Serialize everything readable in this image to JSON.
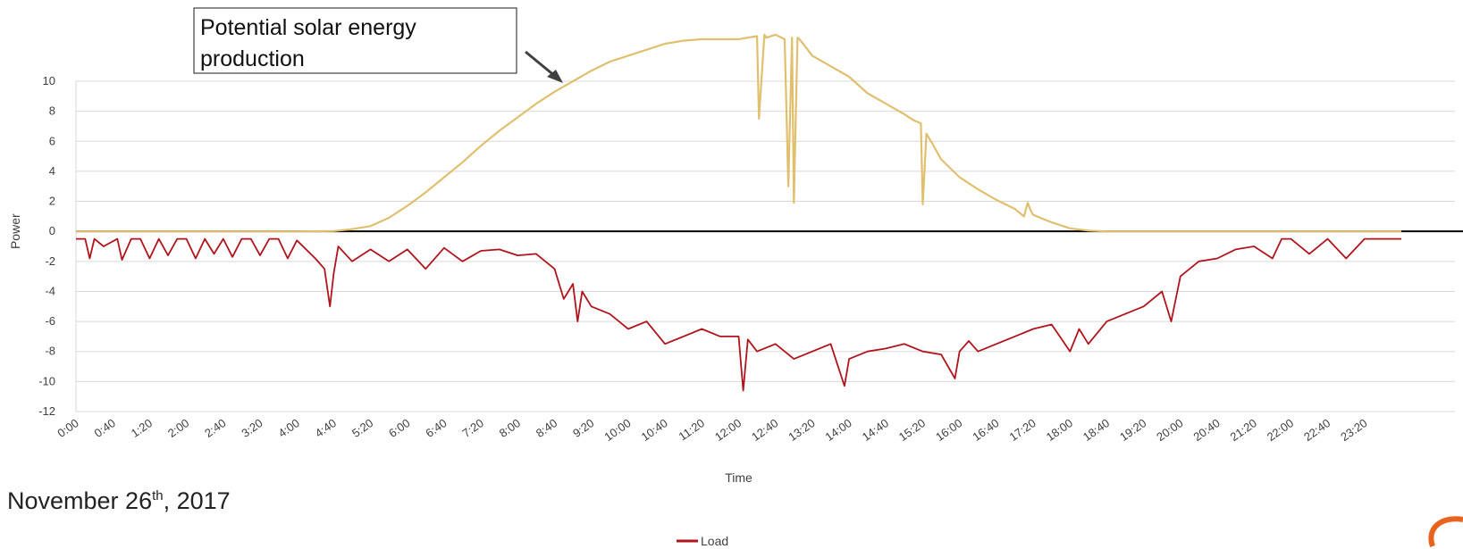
{
  "colors": {
    "solar": "#E0C06F",
    "load": "#B0141C",
    "zero_line": "#000000",
    "grid": "#D9D9D9",
    "brand": "#E8641E"
  },
  "annotation": {
    "line1": "Potential solar energy",
    "line2": "production"
  },
  "caption": {
    "month_day": "November 26",
    "suffix": "th",
    "year": ", 2017"
  },
  "brand_icon": "orange-arc-logo",
  "chart_data": {
    "type": "line",
    "xlabel": "Time",
    "ylabel": "Power",
    "ylim": [
      -12,
      12
    ],
    "yticks": [
      10,
      8,
      6,
      4,
      2,
      0,
      -2,
      -4,
      -6,
      -8,
      -10,
      -12
    ],
    "xlim_hours": [
      0,
      24
    ],
    "xticks": [
      "0:00",
      "0:40",
      "1:20",
      "2:00",
      "2:40",
      "3:20",
      "4:00",
      "4:40",
      "5:20",
      "6:00",
      "6:40",
      "7:20",
      "8:00",
      "8:40",
      "9:20",
      "10:00",
      "10:40",
      "11:20",
      "12:00",
      "12:40",
      "13:20",
      "14:00",
      "14:40",
      "15:20",
      "16:00",
      "16:40",
      "17:20",
      "18:00",
      "18:40",
      "19:20",
      "20:00",
      "20:40",
      "21:20",
      "22:00",
      "22:40",
      "23:20"
    ],
    "grid": true,
    "legend": [
      "Load"
    ],
    "legend_position": "bottom",
    "series": [
      {
        "name": "",
        "x": [
          "0:00",
          "4:00",
          "4:40",
          "5:00",
          "5:20",
          "5:40",
          "6:00",
          "6:20",
          "6:40",
          "7:00",
          "7:20",
          "7:40",
          "8:00",
          "8:20",
          "8:40",
          "9:00",
          "9:20",
          "9:40",
          "10:00",
          "10:20",
          "10:40",
          "11:00",
          "11:20",
          "11:40",
          "12:00",
          "12:10",
          "12:20",
          "12:22",
          "12:28",
          "12:30",
          "12:40",
          "12:50",
          "12:54",
          "12:58",
          "13:00",
          "13:04",
          "13:06",
          "13:10",
          "13:20",
          "13:40",
          "14:00",
          "14:20",
          "14:40",
          "15:00",
          "15:10",
          "15:18",
          "15:20",
          "15:24",
          "15:30",
          "15:40",
          "16:00",
          "16:20",
          "16:40",
          "17:00",
          "17:10",
          "17:14",
          "17:18",
          "17:20",
          "17:40",
          "18:00",
          "18:20",
          "18:40",
          "19:20",
          "24:00"
        ],
        "values": [
          0,
          0,
          0.02,
          0.15,
          0.35,
          0.9,
          1.7,
          2.6,
          3.6,
          4.6,
          5.7,
          6.7,
          7.6,
          8.5,
          9.3,
          10.0,
          10.7,
          11.3,
          11.7,
          12.1,
          12.5,
          12.7,
          12.8,
          12.8,
          12.8,
          12.9,
          13.0,
          7.5,
          13.1,
          12.9,
          13.1,
          12.8,
          3.0,
          12.9,
          1.9,
          12.9,
          12.8,
          12.5,
          11.7,
          11.0,
          10.3,
          9.2,
          8.5,
          7.8,
          7.4,
          7.2,
          1.8,
          6.5,
          5.9,
          4.8,
          3.6,
          2.8,
          2.1,
          1.5,
          1.0,
          1.9,
          1.3,
          1.1,
          0.6,
          0.2,
          0.05,
          0,
          0,
          0
        ]
      },
      {
        "name": "Load",
        "x": [
          "0:00",
          "0:10",
          "0:15",
          "0:20",
          "0:30",
          "0:45",
          "0:50",
          "1:00",
          "1:10",
          "1:20",
          "1:30",
          "1:40",
          "1:50",
          "2:00",
          "2:10",
          "2:20",
          "2:30",
          "2:40",
          "2:50",
          "3:00",
          "3:10",
          "3:20",
          "3:30",
          "3:40",
          "3:50",
          "4:00",
          "4:10",
          "4:20",
          "4:30",
          "4:36",
          "4:40",
          "4:45",
          "5:00",
          "5:20",
          "5:40",
          "6:00",
          "6:20",
          "6:40",
          "7:00",
          "7:20",
          "7:40",
          "8:00",
          "8:20",
          "8:40",
          "8:50",
          "9:00",
          "9:05",
          "9:10",
          "9:20",
          "9:40",
          "9:50",
          "10:00",
          "10:20",
          "10:40",
          "11:00",
          "11:20",
          "11:40",
          "12:00",
          "12:05",
          "12:10",
          "12:20",
          "12:40",
          "13:00",
          "13:20",
          "13:40",
          "13:55",
          "14:00",
          "14:20",
          "14:40",
          "15:00",
          "15:20",
          "15:40",
          "15:55",
          "16:00",
          "16:10",
          "16:20",
          "16:40",
          "17:00",
          "17:20",
          "17:40",
          "18:00",
          "18:10",
          "18:20",
          "18:40",
          "19:00",
          "19:20",
          "19:40",
          "19:50",
          "20:00",
          "20:20",
          "20:40",
          "21:00",
          "21:20",
          "21:40",
          "21:50",
          "22:00",
          "22:20",
          "22:40",
          "23:00",
          "23:20",
          "24:00"
        ],
        "values": [
          -0.5,
          -0.5,
          -1.8,
          -0.5,
          -1.0,
          -0.5,
          -1.9,
          -0.5,
          -0.5,
          -1.8,
          -0.5,
          -1.6,
          -0.5,
          -0.5,
          -1.8,
          -0.5,
          -1.5,
          -0.5,
          -1.7,
          -0.5,
          -0.5,
          -1.6,
          -0.5,
          -0.5,
          -1.8,
          -0.6,
          -1.2,
          -1.8,
          -2.5,
          -5.0,
          -2.8,
          -1.0,
          -2.0,
          -1.2,
          -2.0,
          -1.2,
          -2.5,
          -1.1,
          -2.0,
          -1.3,
          -1.2,
          -1.6,
          -1.5,
          -2.5,
          -4.5,
          -3.5,
          -6.0,
          -4.0,
          -5.0,
          -5.5,
          -6.0,
          -6.5,
          -6.0,
          -7.5,
          -7.0,
          -6.5,
          -7.0,
          -7.0,
          -10.6,
          -7.2,
          -8.0,
          -7.5,
          -8.5,
          -8.0,
          -7.5,
          -10.3,
          -8.5,
          -8.0,
          -7.8,
          -7.5,
          -8.0,
          -8.2,
          -9.8,
          -8.0,
          -7.3,
          -8.0,
          -7.5,
          -7.0,
          -6.5,
          -6.2,
          -8.0,
          -6.5,
          -7.5,
          -6.0,
          -5.5,
          -5.0,
          -4.0,
          -6.0,
          -3.0,
          -2.0,
          -1.8,
          -1.2,
          -1.0,
          -1.8,
          -0.5,
          -0.5,
          -1.5,
          -0.5,
          -1.8,
          -0.5,
          -0.5
        ]
      }
    ]
  }
}
